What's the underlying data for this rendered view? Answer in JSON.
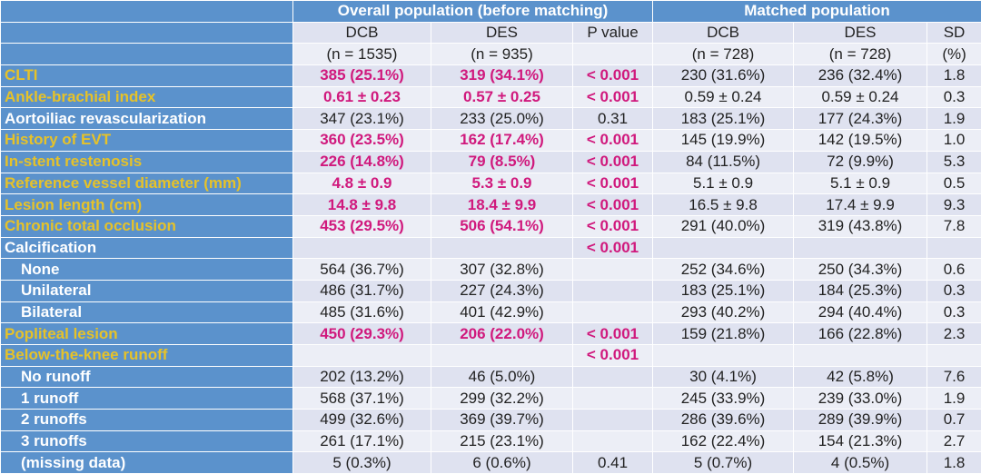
{
  "header": {
    "group_overall": "Overall population (before matching)",
    "group_matched": "Matched population",
    "columns": [
      "DCB",
      "DES",
      "P value",
      "DCB",
      "DES",
      "SD"
    ],
    "subcolumns": [
      "(n = 1535)",
      "(n = 935)",
      "",
      "(n = 728)",
      "(n = 728)",
      "(%)"
    ]
  },
  "colors": {
    "label_bg": "#5b92cc",
    "highlight_label": "#e6c229",
    "highlight_value": "#d0197d"
  },
  "rows": [
    {
      "label": "CLTI",
      "hl": true,
      "ind": false,
      "cells": [
        "385 (25.1%)",
        "319 (34.1%)",
        "< 0.001",
        "230 (31.6%)",
        "236 (32.4%)",
        "1.8"
      ]
    },
    {
      "label": "Ankle-brachial index",
      "hl": true,
      "ind": false,
      "cells": [
        "0.61 ± 0.23",
        "0.57 ± 0.25",
        "< 0.001",
        "0.59 ± 0.24",
        "0.59 ± 0.24",
        "0.3"
      ]
    },
    {
      "label": "Aortoiliac revascularization",
      "hl": false,
      "ind": false,
      "cells": [
        "347 (23.1%)",
        "233 (25.0%)",
        "0.31",
        "183 (25.1%)",
        "177 (24.3%)",
        "1.9"
      ]
    },
    {
      "label": "History of EVT",
      "hl": true,
      "ind": false,
      "cells": [
        "360 (23.5%)",
        "162 (17.4%)",
        "< 0.001",
        "145 (19.9%)",
        "142 (19.5%)",
        "1.0"
      ]
    },
    {
      "label": "In-stent restenosis",
      "hl": true,
      "ind": false,
      "cells": [
        "226 (14.8%)",
        "79 (8.5%)",
        "< 0.001",
        "84 (11.5%)",
        "72 (9.9%)",
        "5.3"
      ]
    },
    {
      "label": "Reference vessel diameter (mm)",
      "hl": true,
      "ind": false,
      "cells": [
        "4.8 ± 0.9",
        "5.3 ± 0.9",
        "< 0.001",
        "5.1 ± 0.9",
        "5.1 ± 0.9",
        "0.5"
      ]
    },
    {
      "label": "Lesion length (cm)",
      "hl": true,
      "ind": false,
      "cells": [
        "14.8 ± 9.8",
        "18.4 ± 9.9",
        "< 0.001",
        "16.5 ± 9.8",
        "17.4 ± 9.9",
        "9.3"
      ]
    },
    {
      "label": "Chronic total occlusion",
      "hl": true,
      "ind": false,
      "cells": [
        "453 (29.5%)",
        "506 (54.1%)",
        "< 0.001",
        "291 (40.0%)",
        "319 (43.8%)",
        "7.8"
      ]
    },
    {
      "label": "Calcification",
      "hl": false,
      "ind": false,
      "pbold": true,
      "cells": [
        "",
        "",
        "< 0.001",
        "",
        "",
        ""
      ]
    },
    {
      "label": "None",
      "hl": false,
      "ind": true,
      "cells": [
        "564 (36.7%)",
        "307 (32.8%)",
        "",
        "252 (34.6%)",
        "250 (34.3%)",
        "0.6"
      ]
    },
    {
      "label": "Unilateral",
      "hl": false,
      "ind": true,
      "cells": [
        "486 (31.7%)",
        "227 (24.3%)",
        "",
        "183 (25.1%)",
        "184 (25.3%)",
        "0.3"
      ]
    },
    {
      "label": "Bilateral",
      "hl": false,
      "ind": true,
      "cells": [
        "485 (31.6%)",
        "401 (42.9%)",
        "",
        "293 (40.2%)",
        "294 (40.4%)",
        "0.3"
      ]
    },
    {
      "label": "Popliteal lesion",
      "hl": true,
      "ind": false,
      "cells": [
        "450 (29.3%)",
        "206 (22.0%)",
        "< 0.001",
        "159 (21.8%)",
        "166 (22.8%)",
        "2.3"
      ]
    },
    {
      "label": "Below-the-knee runoff",
      "hl": true,
      "ind": false,
      "cells": [
        "",
        "",
        "< 0.001",
        "",
        "",
        ""
      ]
    },
    {
      "label": "No runoff",
      "hl": false,
      "ind": true,
      "cells": [
        "202 (13.2%)",
        "46 (5.0%)",
        "",
        "30 (4.1%)",
        "42 (5.8%)",
        "7.6"
      ]
    },
    {
      "label": "1 runoff",
      "hl": false,
      "ind": true,
      "cells": [
        "568 (37.1%)",
        "299 (32.2%)",
        "",
        "245 (33.9%)",
        "239 (33.0%)",
        "1.9"
      ]
    },
    {
      "label": "2 runoffs",
      "hl": false,
      "ind": true,
      "cells": [
        "499 (32.6%)",
        "369 (39.7%)",
        "",
        "286 (39.6%)",
        "289 (39.9%)",
        "0.7"
      ]
    },
    {
      "label": "3 runoffs",
      "hl": false,
      "ind": true,
      "cells": [
        "261 (17.1%)",
        "215 (23.1%)",
        "",
        "162 (22.4%)",
        "154 (21.3%)",
        "2.7"
      ]
    },
    {
      "label": "(missing data)",
      "hl": false,
      "ind": true,
      "cells": [
        "5 (0.3%)",
        "6 (0.6%)",
        "0.41",
        "5 (0.7%)",
        "4 (0.5%)",
        "1.8"
      ]
    }
  ]
}
